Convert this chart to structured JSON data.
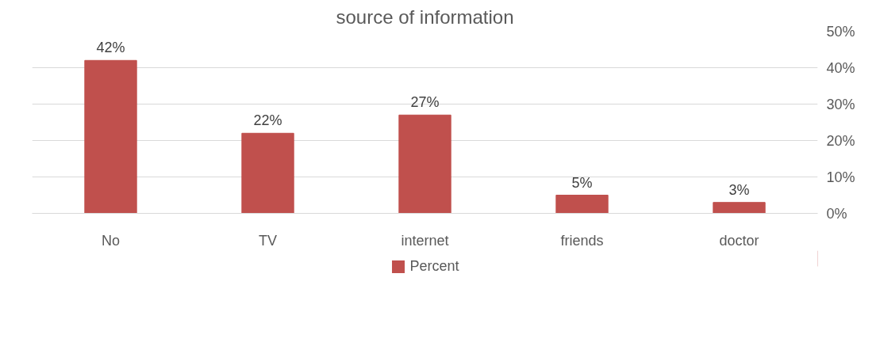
{
  "chart_data": {
    "type": "bar",
    "title": "source of information",
    "categories": [
      "No",
      "TV",
      "internet",
      "friends",
      "doctor"
    ],
    "series": [
      {
        "name": "Percent",
        "color": "#c0504d",
        "values": [
          42,
          22,
          27,
          5,
          3
        ],
        "value_labels": [
          "42%",
          "22%",
          "27%",
          "5%",
          "3%"
        ]
      }
    ],
    "ylim": [
      0,
      50
    ],
    "yticks": [
      {
        "value": 0,
        "label": "0%"
      },
      {
        "value": 10,
        "label": "10%"
      },
      {
        "value": 20,
        "label": "20%"
      },
      {
        "value": 30,
        "label": "30%"
      },
      {
        "value": 40,
        "label": "40%"
      },
      {
        "value": 50,
        "label": "50%"
      }
    ],
    "grid": "y",
    "legend": "bottom"
  }
}
